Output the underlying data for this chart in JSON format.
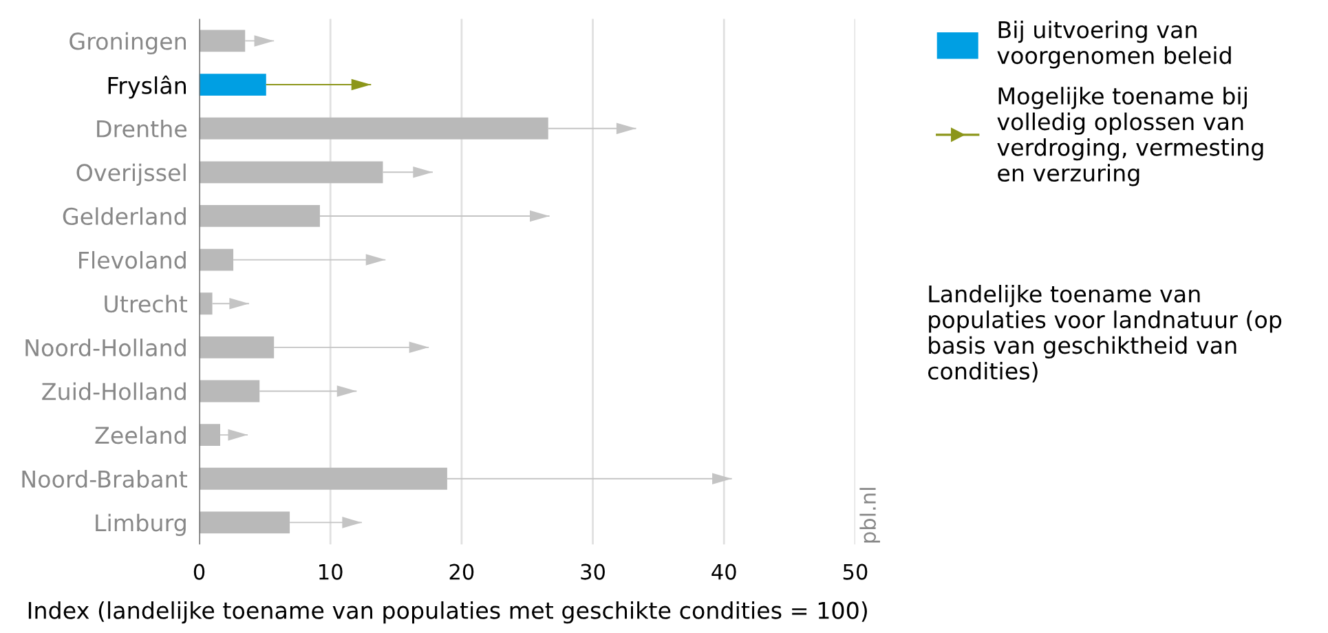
{
  "chart_data": {
    "type": "bar",
    "orientation": "horizontal",
    "stacked": true,
    "categories": [
      "Groningen",
      "Fryslân",
      "Drenthe",
      "Overijssel",
      "Gelderland",
      "Flevoland",
      "Utrecht",
      "Noord-Holland",
      "Zuid-Holland",
      "Zeeland",
      "Noord-Brabant",
      "Limburg"
    ],
    "series": [
      {
        "name": "Bij uitvoering van voorgenomen beleid",
        "color": "#009fe3",
        "colors": [
          "#b9b9b9",
          "#009fe3",
          "#b9b9b9",
          "#b9b9b9",
          "#b9b9b9",
          "#b9b9b9",
          "#b9b9b9",
          "#b9b9b9",
          "#b9b9b9",
          "#b9b9b9",
          "#b9b9b9",
          "#b9b9b9"
        ],
        "values": [
          3.5,
          5.1,
          26.6,
          14.0,
          9.2,
          2.6,
          1.0,
          5.7,
          4.6,
          1.6,
          18.9,
          6.9
        ]
      },
      {
        "name": "Mogelijke toename bij volledig oplossen van verdroging, vermesting en verzuring",
        "marker": "triangle",
        "color": "#8c961a",
        "colors": [
          "#c4c4c4",
          "#8c961a",
          "#c4c4c4",
          "#c4c4c4",
          "#c4c4c4",
          "#c4c4c4",
          "#c4c4c4",
          "#c4c4c4",
          "#c4c4c4",
          "#c4c4c4",
          "#c4c4c4",
          "#c4c4c4"
        ],
        "values": [
          2.2,
          8.0,
          6.7,
          3.8,
          17.5,
          11.6,
          2.8,
          11.8,
          7.4,
          2.1,
          21.7,
          5.5
        ]
      }
    ],
    "xlim": [
      0,
      50
    ],
    "xticks": [
      0,
      10,
      20,
      30,
      40,
      50
    ],
    "xlabel": "Index (landelijke toename van populaties met geschikte condities = 100)",
    "grid": "x",
    "legend": "right",
    "annotations": [
      "Landelijke toename van populaties voor landnatuur (op basis van geschiktheid van condities)",
      "pbl.nl"
    ]
  }
}
